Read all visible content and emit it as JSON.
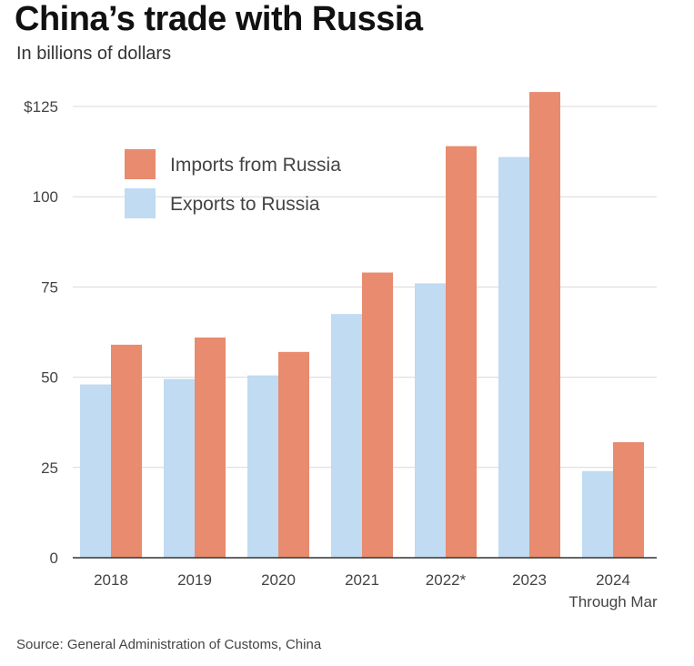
{
  "title": "China’s trade with Russia",
  "subtitle": "In billions of dollars",
  "source": "Source: General Administration of Customs,  China",
  "colors": {
    "imports": "#e88b6e",
    "exports": "#c0dbf2",
    "grid": "#d9d9d9",
    "axis": "#333333"
  },
  "chart_data": {
    "type": "bar",
    "categories": [
      "2018",
      "2019",
      "2020",
      "2021",
      "2022*",
      "2023",
      "2024"
    ],
    "category_sublabels": [
      "",
      "",
      "",
      "",
      "",
      "",
      "Through Mar"
    ],
    "series": [
      {
        "name": "Exports to Russia",
        "values": [
          48,
          49.5,
          50.5,
          67.5,
          76,
          111,
          24
        ]
      },
      {
        "name": "Imports from Russia",
        "values": [
          59,
          61,
          57,
          79,
          114,
          129,
          32
        ]
      }
    ],
    "ylim": [
      0,
      125
    ],
    "yticks": [
      0,
      25,
      50,
      75,
      100,
      125
    ],
    "ytick_labels": [
      "0",
      "25",
      "50",
      "75",
      "100",
      "$125"
    ],
    "legend": [
      "Imports from Russia",
      "Exports to Russia"
    ],
    "grid": true,
    "legend_position": "top-left"
  }
}
